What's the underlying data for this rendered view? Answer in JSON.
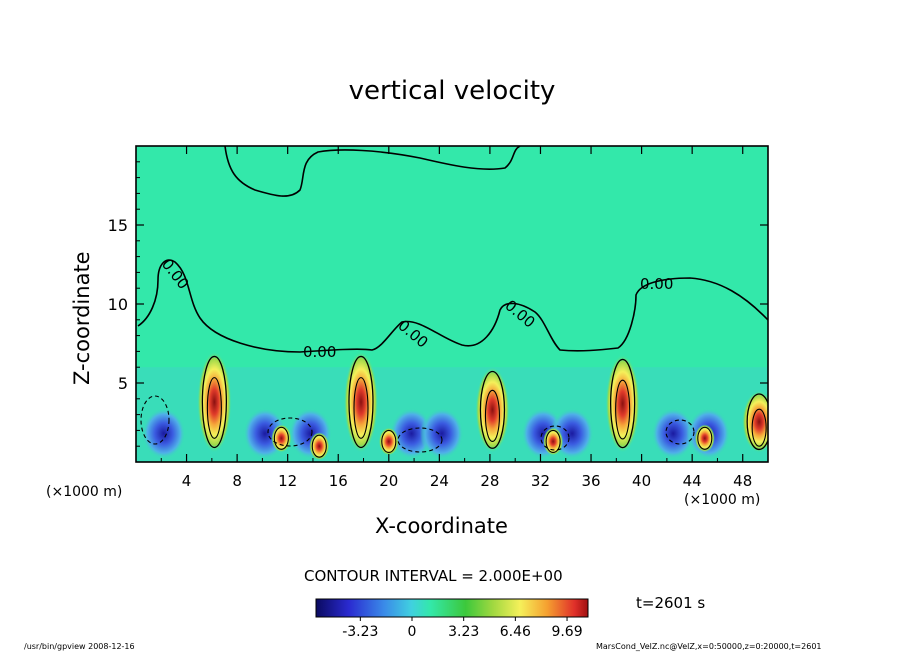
{
  "chart_data": {
    "type": "heatmap",
    "title": "vertical velocity",
    "xlabel": "X-coordinate",
    "ylabel": "Z-coordinate",
    "x_unit_left": "(×1000 m)",
    "x_unit_right": "(×1000 m)",
    "xlim": [
      0,
      50
    ],
    "ylim": [
      0,
      20
    ],
    "x_ticks": [
      "4",
      "8",
      "12",
      "16",
      "20",
      "24",
      "28",
      "32",
      "36",
      "40",
      "44",
      "48"
    ],
    "y_ticks": [
      "5",
      "10",
      "15"
    ],
    "contour_interval_label": "CONTOUR INTERVAL = 2.000E+00",
    "contour_labels": [
      "0.00",
      "0.00",
      "0.00",
      "0.00",
      "0.00"
    ],
    "colorbar": {
      "min": -6.0,
      "max": 11.0,
      "tick_labels": [
        "-3.23",
        "0",
        "3.23",
        "6.46",
        "9.69"
      ],
      "tick_values": [
        -3.23,
        0,
        3.23,
        6.46,
        9.69
      ]
    },
    "time_label": "t=2601 s",
    "updrafts": [
      {
        "x": 6.2,
        "z_top": 7.0,
        "w_max": 9.7
      },
      {
        "x": 17.8,
        "z_top": 7.0,
        "w_max": 9.7
      },
      {
        "x": 28.2,
        "z_top": 6.0,
        "w_max": 9.7
      },
      {
        "x": 38.5,
        "z_top": 6.8,
        "w_max": 9.7
      },
      {
        "x": 49.3,
        "z_top": 4.5,
        "w_max": 8.0
      }
    ],
    "colors": {
      "background_field": "#33e8aa",
      "contour_line": "#000000"
    }
  },
  "footer": {
    "left": "/usr/bin/gpview   2008-12-16",
    "right": "MarsCond_VelZ.nc@VelZ,x=0:50000,z=0:20000,t=2601"
  }
}
